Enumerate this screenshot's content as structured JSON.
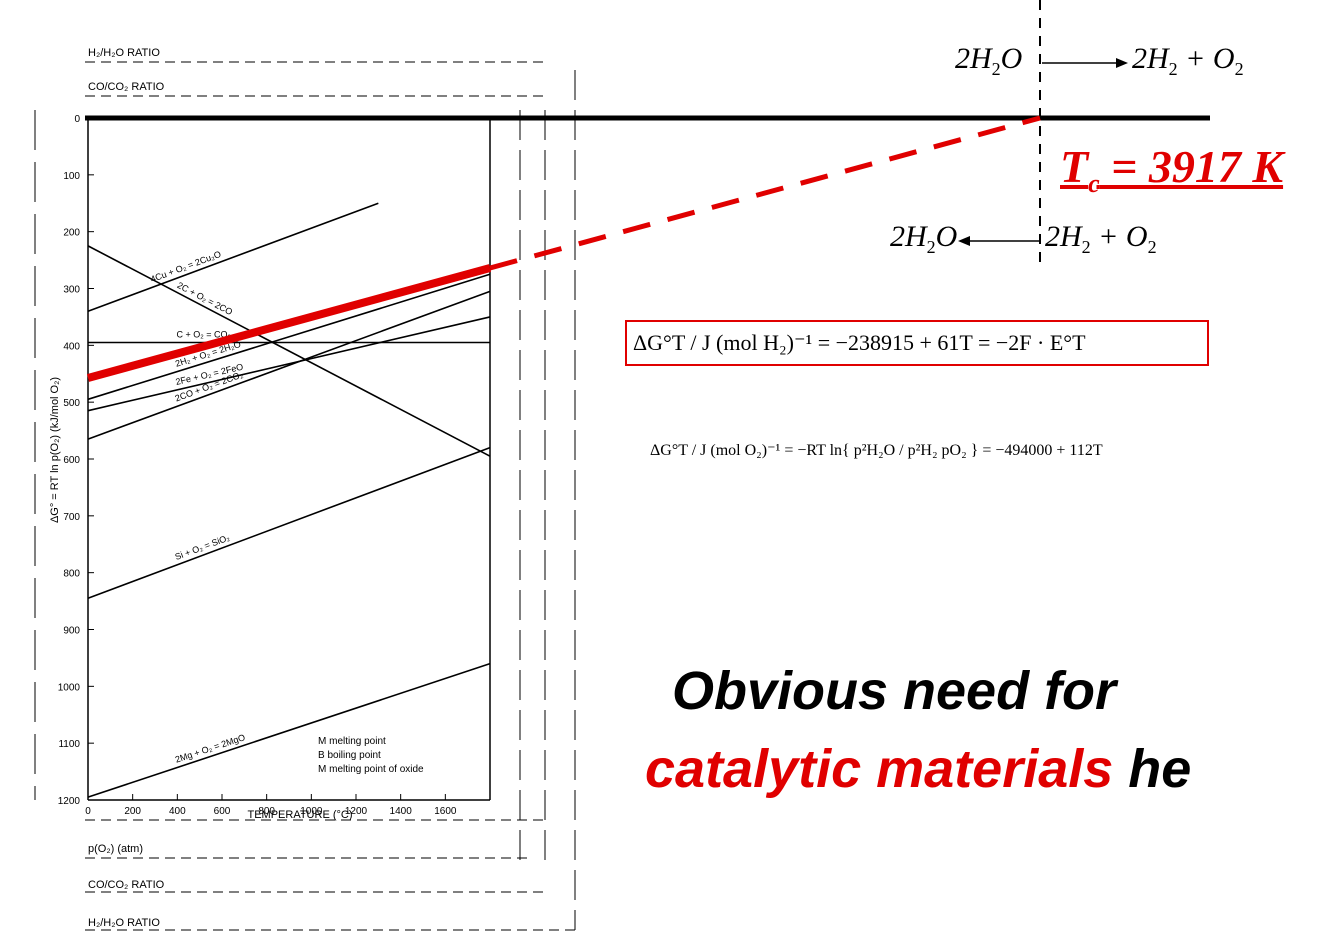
{
  "chart_data": {
    "type": "line",
    "title": "",
    "top_axis_labels": [
      "H₂/H₂O RATIO",
      "CO/CO₂ RATIO"
    ],
    "bottom_axis_labels": [
      "p(O₂) (atm)",
      "CO/CO₂ RATIO",
      "H₂/H₂O RATIO"
    ],
    "xlabel": "TEMPERATURE (°C)",
    "ylabel": "ΔG° = RT ln p(O₂) (kJ/mol O₂)",
    "x_ticks": [
      "0",
      "200",
      "400",
      "600",
      "800",
      "1000",
      "1200",
      "1400",
      "1600"
    ],
    "y_ticks": [
      "0",
      "100",
      "200",
      "300",
      "400",
      "500",
      "600",
      "700",
      "800",
      "900",
      "1000",
      "1100",
      "1200"
    ],
    "xlim": [
      0,
      1800
    ],
    "ylim": [
      0,
      -1200
    ],
    "point_legend": [
      "M  melting point",
      "B  boiling point",
      "M  melting point of oxide"
    ],
    "series": [
      {
        "name": "4Cu + O₂ = 2Cu₂O",
        "x": [
          0,
          1300
        ],
        "y": [
          -340,
          -150
        ]
      },
      {
        "name": "2H₂ + O₂ = 2H₂O",
        "x": [
          0,
          1800
        ],
        "y": [
          -495,
          -275
        ]
      },
      {
        "name": "2CO + O₂ = 2CO₂",
        "x": [
          0,
          1800
        ],
        "y": [
          -565,
          -305
        ]
      },
      {
        "name": "C + O₂ = CO₂",
        "x": [
          0,
          1800
        ],
        "y": [
          -395,
          -395
        ]
      },
      {
        "name": "2C + O₂ = 2CO",
        "x": [
          0,
          1800
        ],
        "y": [
          -225,
          -595
        ]
      },
      {
        "name": "2Fe + O₂ = 2FeO",
        "x": [
          0,
          1800
        ],
        "y": [
          -515,
          -350
        ]
      },
      {
        "name": "Si + O₂ = SiO₂",
        "x": [
          0,
          1800
        ],
        "y": [
          -845,
          -580
        ]
      },
      {
        "name": "2Mg + O₂ = 2MgO",
        "x": [
          0,
          1800
        ],
        "y": [
          -1195,
          -960
        ]
      }
    ]
  },
  "overlay": {
    "reaction_forward": {
      "lhs": "2H",
      "lhs_sub": "2",
      "lhs_tail": "O",
      "rhs_1": "2H",
      "rhs_sub_1": "2",
      "rhs_2": "+ O",
      "rhs_sub_2": "2"
    },
    "reaction_backward": {
      "lhs": "2H",
      "lhs_sub": "2",
      "lhs_tail": "O",
      "rhs_1": "2H",
      "rhs_sub_1": "2",
      "rhs_2": "+ O",
      "rhs_sub_2": "2"
    },
    "tc_label": "T",
    "tc_sub": "c",
    "tc_value": " = 3917 K",
    "equation_1": "ΔG°T  / J (mol H₂)⁻¹ = −238915 + 61T = −2F · E°T",
    "equation_2": "ΔG°T  / J (mol O₂)⁻¹ = −RT ln{ p²H₂O / p²H₂ pO₂ } = −494000 + 112T",
    "headline_line1": "Obvious need for",
    "headline_red": "catalytic materials",
    "headline_tail": " he"
  },
  "colors": {
    "accent": "#e00000",
    "ink": "#000000"
  }
}
